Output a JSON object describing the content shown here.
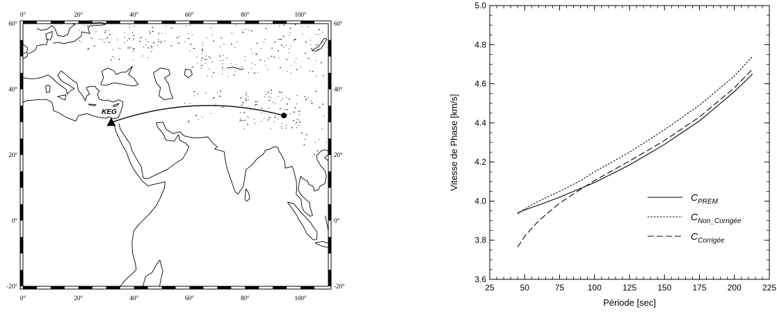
{
  "map": {
    "lon_range": [
      0,
      110
    ],
    "lat_range": [
      -20,
      60
    ],
    "lon_tick_labels": [
      "0°",
      "20°",
      "40°",
      "60°",
      "80°",
      "100°"
    ],
    "lat_tick_labels": [
      "-20°",
      "0°",
      "20°",
      "40°",
      "60°"
    ],
    "station": {
      "label": "KEG",
      "lon": 31.8,
      "lat": 29.9
    },
    "event": {
      "lon": 94,
      "lat": 32
    },
    "path_apex_lat": 35
  },
  "chart_data": {
    "type": "line",
    "xlabel": "Période [sec]",
    "ylabel": "Vitesse de Phase [km/s]",
    "xlim": [
      25,
      225
    ],
    "ylim": [
      3.6,
      5.0
    ],
    "x_tick_labels": [
      "25",
      "50",
      "75",
      "100",
      "125",
      "150",
      "175",
      "200",
      "225"
    ],
    "y_tick_labels": [
      "3.6",
      "3.8",
      "4.0",
      "4.2",
      "4.4",
      "4.6",
      "4.8",
      "5.0"
    ],
    "legend_position": "lower-right",
    "series": [
      {
        "name_main": "C",
        "name_sub": "PREM",
        "style": "solid",
        "x": [
          45,
          50,
          60,
          75,
          90,
          100,
          125,
          150,
          175,
          200,
          213
        ],
        "y": [
          3.94,
          3.955,
          3.98,
          4.02,
          4.065,
          4.095,
          4.185,
          4.29,
          4.41,
          4.56,
          4.65
        ]
      },
      {
        "name_main": "C",
        "name_sub": "Non_Corrigée",
        "style": "dotted",
        "x": [
          45,
          50,
          60,
          75,
          90,
          100,
          125,
          150,
          175,
          200,
          213
        ],
        "y": [
          3.935,
          3.96,
          4.0,
          4.05,
          4.105,
          4.15,
          4.25,
          4.365,
          4.49,
          4.64,
          4.74
        ]
      },
      {
        "name_main": "C",
        "name_sub": "Corrigée",
        "style": "dashed",
        "x": [
          45,
          50,
          60,
          75,
          90,
          100,
          125,
          150,
          175,
          200,
          213
        ],
        "y": [
          3.765,
          3.82,
          3.9,
          3.99,
          4.06,
          4.105,
          4.205,
          4.31,
          4.43,
          4.58,
          4.675
        ]
      }
    ]
  }
}
